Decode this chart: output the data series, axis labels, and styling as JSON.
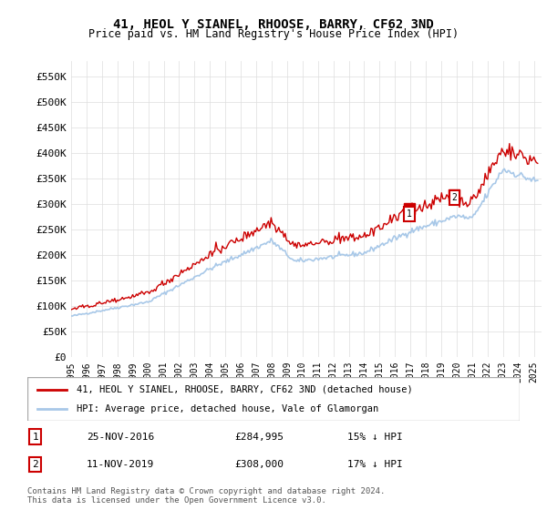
{
  "title": "41, HEOL Y SIANEL, RHOOSE, BARRY, CF62 3ND",
  "subtitle": "Price paid vs. HM Land Registry's House Price Index (HPI)",
  "ylabel_ticks": [
    "£0",
    "£50K",
    "£100K",
    "£150K",
    "£200K",
    "£250K",
    "£300K",
    "£350K",
    "£400K",
    "£450K",
    "£500K",
    "£550K"
  ],
  "ytick_values": [
    0,
    50000,
    100000,
    150000,
    200000,
    250000,
    300000,
    350000,
    400000,
    450000,
    500000,
    550000
  ],
  "ylim": [
    0,
    580000
  ],
  "xlim_start": 1995.0,
  "xlim_end": 2025.5,
  "hpi_color": "#a8c8e8",
  "price_color": "#cc0000",
  "sale1_date": "25-NOV-2016",
  "sale1_price": 284995,
  "sale1_label": "1",
  "sale1_hpi_pct": "15% ↓ HPI",
  "sale2_date": "11-NOV-2019",
  "sale2_price": 308000,
  "sale2_label": "2",
  "sale2_hpi_pct": "17% ↓ HPI",
  "legend_line1": "41, HEOL Y SIANEL, RHOOSE, BARRY, CF62 3ND (detached house)",
  "legend_line2": "HPI: Average price, detached house, Vale of Glamorgan",
  "footnote": "Contains HM Land Registry data © Crown copyright and database right 2024.\nThis data is licensed under the Open Government Licence v3.0.",
  "background_color": "#ffffff",
  "grid_color": "#dddddd"
}
